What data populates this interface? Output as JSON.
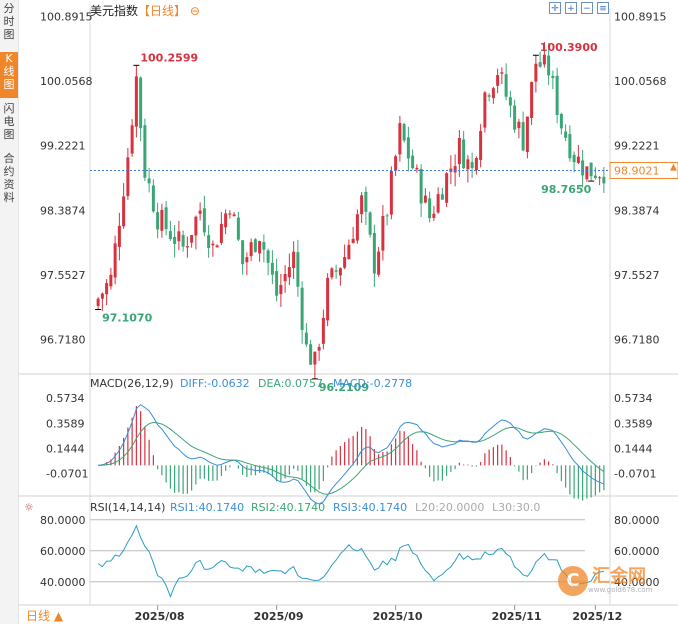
{
  "sidebar": {
    "tabs": [
      {
        "label": "分时图",
        "active": false
      },
      {
        "label": "K线图",
        "active": true
      },
      {
        "label": "闪电图",
        "active": false
      },
      {
        "label": "合约资料",
        "active": false
      }
    ]
  },
  "header": {
    "symbol": "美元指数",
    "period": "【日线】",
    "tools": [
      "crosshair-icon",
      "zoom-in-icon",
      "zoom-out-icon",
      "settings-icon"
    ]
  },
  "chart_data": {
    "type": "candlestick",
    "main": {
      "y_ticks": [
        "100.8915",
        "100.0568",
        "99.2221",
        "98.3874",
        "97.5527",
        "96.7180"
      ],
      "ylim": [
        96.3,
        101.0
      ],
      "last_price": "98.9021",
      "annotations": [
        {
          "label": "97.1070",
          "value": 97.107,
          "kind": "low"
        },
        {
          "label": "100.2599",
          "value": 100.2599,
          "kind": "high"
        },
        {
          "label": "96.2109",
          "value": 96.2109,
          "kind": "low"
        },
        {
          "label": "100.3900",
          "value": 100.39,
          "kind": "high"
        },
        {
          "label": "98.7650",
          "value": 98.765,
          "kind": "low"
        }
      ]
    },
    "x_labels": [
      "2025/08",
      "2025/09",
      "2025/10",
      "2025/11",
      "2025/12"
    ],
    "macd": {
      "title": "MACD(26,12,9)",
      "diff_label": "DIFF:-0.0632",
      "dea_label": "DEA:0.0757",
      "macd_label": "MACD:-0.2778",
      "y_ticks": [
        "0.5734",
        "0.3589",
        "0.1444",
        "-0.0701"
      ],
      "ylim": [
        -0.27,
        0.66
      ]
    },
    "rsi": {
      "title": "RSI(14,14,14)",
      "rsi1_label": "RSI1:40.1740",
      "rsi2_label": "RSI2:40.1740",
      "rsi3_label": "RSI3:40.1740",
      "l20_label": "L20:20.0000",
      "l30_label": "L30:30.0",
      "y_ticks": [
        "80.0000",
        "60.0000",
        "40.0000"
      ],
      "ylim": [
        25,
        85
      ]
    },
    "colors": {
      "up": "#d6323f",
      "down": "#3aa676",
      "diff": "#3a8fd9",
      "dea": "#3aa676",
      "rsi": "#3a8fd9"
    }
  },
  "footer": {
    "period_button": "日线 ▲"
  },
  "watermark": {
    "brand": "汇金网",
    "url": "www.gold678.com",
    "icon": "logo-icon"
  }
}
